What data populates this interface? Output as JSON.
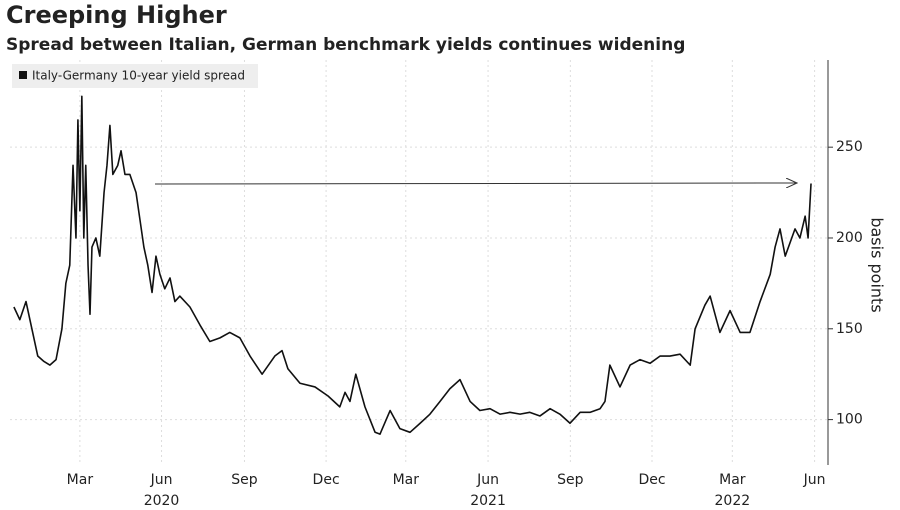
{
  "chart_data": {
    "type": "line",
    "title": "Creeping Higher",
    "subtitle": "Spread between Italian, German benchmark yields continues widening",
    "y_label": "basis points",
    "x": [
      2019.962,
      2019.98,
      2019.999,
      2020.017,
      2020.035,
      2020.054,
      2020.072,
      2020.091,
      2020.109,
      2020.121,
      2020.133,
      2020.143,
      2020.152,
      2020.158,
      2020.164,
      2020.17,
      2020.176,
      2020.182,
      2020.189,
      2020.195,
      2020.201,
      2020.213,
      2020.225,
      2020.238,
      2020.247,
      2020.256,
      2020.265,
      2020.28,
      2020.29,
      2020.302,
      2020.317,
      2020.336,
      2020.348,
      2020.36,
      2020.372,
      2020.385,
      2020.397,
      2020.409,
      2020.424,
      2020.44,
      2020.455,
      2020.47,
      2020.501,
      2020.532,
      2020.562,
      2020.593,
      2020.623,
      2020.654,
      2020.685,
      2020.722,
      2020.761,
      2020.783,
      2020.801,
      2020.838,
      2020.884,
      2020.924,
      2020.96,
      2020.976,
      2020.991,
      2021.009,
      2021.037,
      2021.068,
      2021.083,
      2021.114,
      2021.144,
      2021.175,
      2021.206,
      2021.236,
      2021.267,
      2021.297,
      2021.328,
      2021.359,
      2021.389,
      2021.42,
      2021.451,
      2021.481,
      2021.512,
      2021.542,
      2021.573,
      2021.604,
      2021.634,
      2021.665,
      2021.696,
      2021.726,
      2021.757,
      2021.772,
      2021.787,
      2021.818,
      2021.849,
      2021.879,
      2021.91,
      2021.941,
      2021.971,
      2022.002,
      2022.033,
      2022.048,
      2022.078,
      2022.094,
      2022.124,
      2022.155,
      2022.186,
      2022.216,
      2022.247,
      2022.278,
      2022.293,
      2022.308,
      2022.324,
      2022.354,
      2022.369,
      2022.385,
      2022.394,
      2022.403
    ],
    "series": [
      {
        "name": "Italy-Germany 10-year yield spread",
        "color": "#111111",
        "values": [
          162,
          155,
          165,
          150,
          135,
          132,
          130,
          133,
          150,
          175,
          185,
          240,
          200,
          265,
          215,
          278,
          200,
          240,
          185,
          158,
          195,
          200,
          190,
          225,
          240,
          262,
          235,
          240,
          248,
          235,
          235,
          225,
          210,
          195,
          185,
          170,
          190,
          180,
          172,
          178,
          165,
          168,
          162,
          152,
          143,
          145,
          148,
          145,
          135,
          125,
          135,
          138,
          128,
          120,
          118,
          113,
          107,
          115,
          110,
          125,
          107,
          93,
          92,
          105,
          95,
          93,
          98,
          103,
          110,
          117,
          122,
          110,
          105,
          106,
          103,
          104,
          103,
          104,
          102,
          106,
          103,
          98,
          104,
          104,
          106,
          110,
          130,
          118,
          130,
          133,
          131,
          135,
          135,
          136,
          130,
          150,
          163,
          168,
          148,
          160,
          148,
          148,
          165,
          180,
          195,
          205,
          190,
          205,
          200,
          212,
          200,
          230
        ]
      }
    ],
    "xlim": [
      2019.95,
      2022.455
    ],
    "xticks": [
      {
        "value": 2020.164,
        "label": "Mar"
      },
      {
        "value": 2020.414,
        "label": "Jun"
      },
      {
        "value": 2020.668,
        "label": "Sep"
      },
      {
        "value": 2020.918,
        "label": "Dec"
      },
      {
        "value": 2021.162,
        "label": "Mar"
      },
      {
        "value": 2021.414,
        "label": "Jun"
      },
      {
        "value": 2021.666,
        "label": "Sep"
      },
      {
        "value": 2021.916,
        "label": "Dec"
      },
      {
        "value": 2022.162,
        "label": "Mar"
      },
      {
        "value": 2022.414,
        "label": "Jun"
      }
    ],
    "year_labels": [
      {
        "value": 2020.414,
        "label": "2020"
      },
      {
        "value": 2021.414,
        "label": "2021"
      },
      {
        "value": 2022.162,
        "label": "2022"
      }
    ],
    "ylim": [
      75,
      298
    ],
    "yticks": [
      100,
      150,
      200,
      250
    ],
    "grid": true
  }
}
